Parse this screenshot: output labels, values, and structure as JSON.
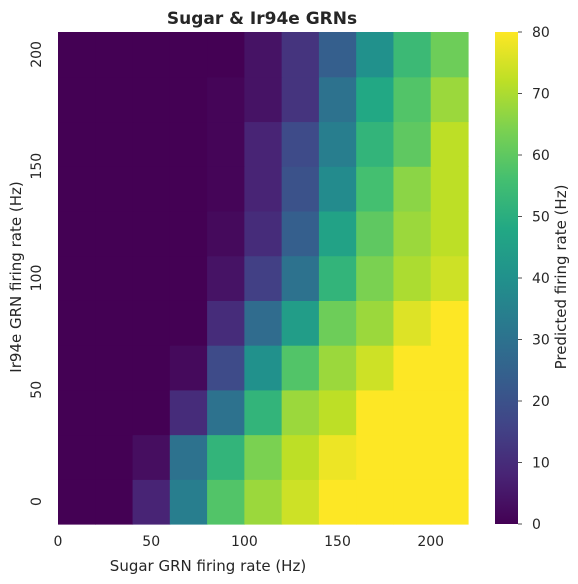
{
  "chart_data": {
    "type": "heatmap",
    "title": "Sugar & Ir94e GRNs",
    "xlabel": "Sugar GRN firing rate (Hz)",
    "ylabel": "Ir94e GRN firing rate (Hz)",
    "colorbar_label": "Predicted firing rate (Hz)",
    "colormap": "viridis",
    "vmin": 0,
    "vmax": 80,
    "x_values": [
      0,
      20,
      40,
      60,
      80,
      100,
      120,
      140,
      160,
      180,
      200
    ],
    "y_values": [
      0,
      20,
      40,
      60,
      80,
      100,
      120,
      140,
      160,
      180,
      200
    ],
    "x_tick_labels": [
      "0",
      "50",
      "100",
      "150",
      "200"
    ],
    "y_tick_labels": [
      "0",
      "50",
      "100",
      "150",
      "200"
    ],
    "colorbar_ticks": [
      "0",
      "10",
      "20",
      "30",
      "40",
      "50",
      "60",
      "70",
      "80"
    ],
    "rows_bottom_to_top": [
      [
        0,
        0,
        8,
        34,
        58,
        68,
        74,
        80,
        80,
        80,
        80
      ],
      [
        0,
        0,
        3,
        30,
        52,
        64,
        72,
        78,
        80,
        80,
        80
      ],
      [
        0,
        0,
        0,
        10,
        30,
        52,
        68,
        72,
        80,
        80,
        80
      ],
      [
        0,
        0,
        0,
        2,
        18,
        40,
        58,
        68,
        74,
        80,
        80
      ],
      [
        0,
        0,
        0,
        0,
        10,
        28,
        44,
        62,
        68,
        76,
        80
      ],
      [
        0,
        0,
        0,
        0,
        4,
        15,
        30,
        52,
        64,
        70,
        74
      ],
      [
        0,
        0,
        0,
        0,
        2,
        10,
        24,
        46,
        60,
        68,
        72
      ],
      [
        0,
        0,
        0,
        0,
        1,
        8,
        20,
        38,
        56,
        66,
        72
      ],
      [
        0,
        0,
        0,
        0,
        1,
        8,
        18,
        34,
        52,
        60,
        72
      ],
      [
        0,
        0,
        0,
        0,
        1,
        4,
        12,
        30,
        48,
        58,
        68
      ],
      [
        0,
        0,
        0,
        0,
        0,
        4,
        12,
        24,
        40,
        54,
        62
      ]
    ]
  }
}
